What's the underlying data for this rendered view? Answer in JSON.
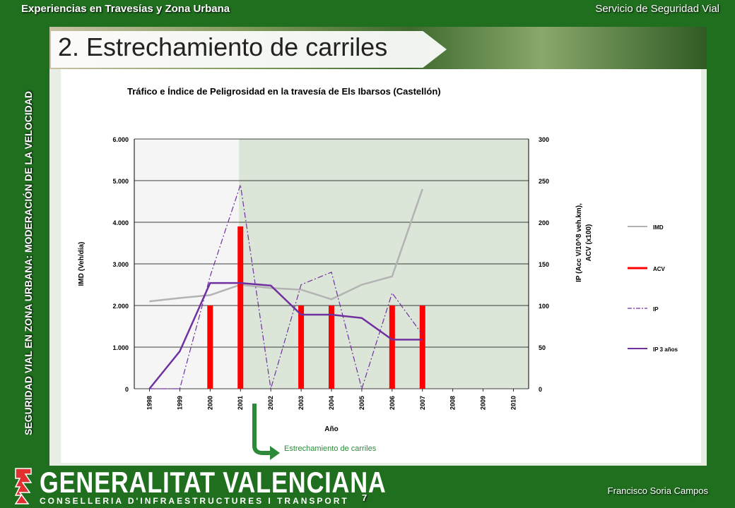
{
  "header": {
    "left": "Experiencias en Travesías y Zona Urbana",
    "right": "Servicio de Seguridad Vial"
  },
  "side_label": "SEGURIDAD VIAL EN ZONA URBANA: MODERACIÓN DE LA VELOCIDAD",
  "slide_title": "2. Estrechamiento de carriles",
  "callout": "Estrechamiento de carriles",
  "footer": {
    "logo_main": "GENERALITAT VALENCIANA",
    "logo_sub": "CONSELLERIA D'INFRAESTRUCTURES I TRANSPORT",
    "page": "7",
    "author": "Francisco Soria Campos"
  },
  "colors": {
    "background": "#1f6f1f",
    "imd": "#b3b3b3",
    "acv": "#ff0000",
    "ip": "#7030a0",
    "ip3": "#7030a0",
    "shade": "#dbe6d8",
    "callout_arrow": "#2c8a3a"
  },
  "chart_data": {
    "type": "line",
    "title": "Tráfico e Índice de Peligrosidad en la travesía de Els Ibarsos (Castellón)",
    "xlabel": "Año",
    "ylabel_left": "IMD (Veh/día)",
    "ylabel_right": "IP (Acc V/10^8 veh.km), ACV (x100)",
    "categories": [
      "1998",
      "1999",
      "2000",
      "2001",
      "2002",
      "2003",
      "2004",
      "2005",
      "2006",
      "2007",
      "2008",
      "2009",
      "2010"
    ],
    "ylim_left": [
      0,
      6000
    ],
    "ylim_right": [
      0,
      300
    ],
    "yticks_left": [
      "0",
      "1.000",
      "2.000",
      "3.000",
      "4.000",
      "5.000",
      "6.000"
    ],
    "yticks_right": [
      "0",
      "50",
      "100",
      "150",
      "200",
      "250",
      "300"
    ],
    "shaded_from": "2002",
    "legend_position": "right",
    "series": [
      {
        "name": "IMD",
        "axis": "left",
        "style": "line",
        "values": [
          2100,
          2180,
          2250,
          2500,
          2420,
          2380,
          2150,
          2500,
          2700,
          4800,
          null,
          null,
          null
        ]
      },
      {
        "name": "ACV",
        "axis": "right",
        "style": "bar",
        "values": [
          null,
          null,
          100,
          195,
          null,
          100,
          100,
          null,
          100,
          100,
          null,
          null,
          null
        ]
      },
      {
        "name": "IP",
        "axis": "right",
        "style": "dashdot",
        "values": [
          0,
          0,
          135,
          245,
          0,
          125,
          140,
          0,
          115,
          65,
          null,
          null,
          null
        ]
      },
      {
        "name": "IP 3 años",
        "axis": "right",
        "style": "line",
        "values": [
          0,
          45,
          127,
          127,
          124,
          89,
          89,
          85,
          59,
          59,
          null,
          null,
          null
        ]
      }
    ]
  }
}
